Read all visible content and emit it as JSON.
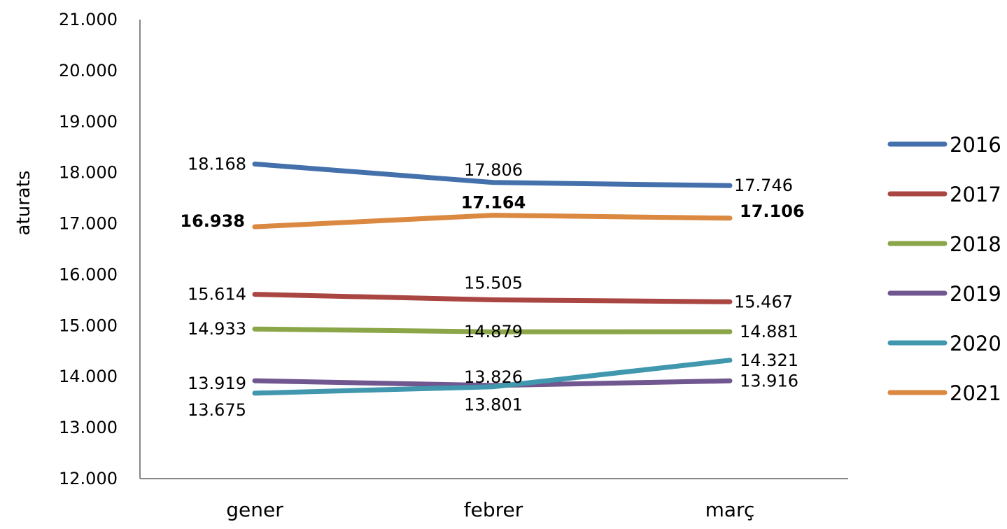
{
  "chart_data": {
    "type": "line",
    "categories": [
      "gener",
      "febrer",
      "març"
    ],
    "ylabel": "aturats",
    "ylim": [
      12000,
      21000
    ],
    "ytick_step": 1000,
    "ytick_labels": [
      "12.000",
      "13.000",
      "14.000",
      "15.000",
      "16.000",
      "17.000",
      "18.000",
      "19.000",
      "20.000",
      "21.000"
    ],
    "grid": false,
    "legend_position": "right",
    "series": [
      {
        "name": "2016",
        "color": "#4470AC",
        "values": [
          18168,
          17806,
          17746
        ],
        "labels": [
          "18.168",
          "17.806",
          "17.746"
        ],
        "bold": false
      },
      {
        "name": "2017",
        "color": "#AA4642",
        "values": [
          15614,
          15505,
          15467
        ],
        "labels": [
          "15.614",
          "15.505",
          "15.467"
        ],
        "bold": false
      },
      {
        "name": "2018",
        "color": "#8AA648",
        "values": [
          14933,
          14879,
          14881
        ],
        "labels": [
          "14.933",
          "14.879",
          "14.881"
        ],
        "bold": false
      },
      {
        "name": "2019",
        "color": "#71578F",
        "values": [
          13919,
          13826,
          13916
        ],
        "labels": [
          "13.919",
          "13.826",
          "13.916"
        ],
        "bold": false
      },
      {
        "name": "2020",
        "color": "#4097AE",
        "values": [
          13675,
          13801,
          14321
        ],
        "labels": [
          "13.675",
          "13.801",
          "14.321"
        ],
        "bold": false
      },
      {
        "name": "2021",
        "color": "#DB8841",
        "values": [
          16938,
          17164,
          17106
        ],
        "labels": [
          "16.938",
          "17.164",
          "17.106"
        ],
        "bold": true
      }
    ]
  }
}
